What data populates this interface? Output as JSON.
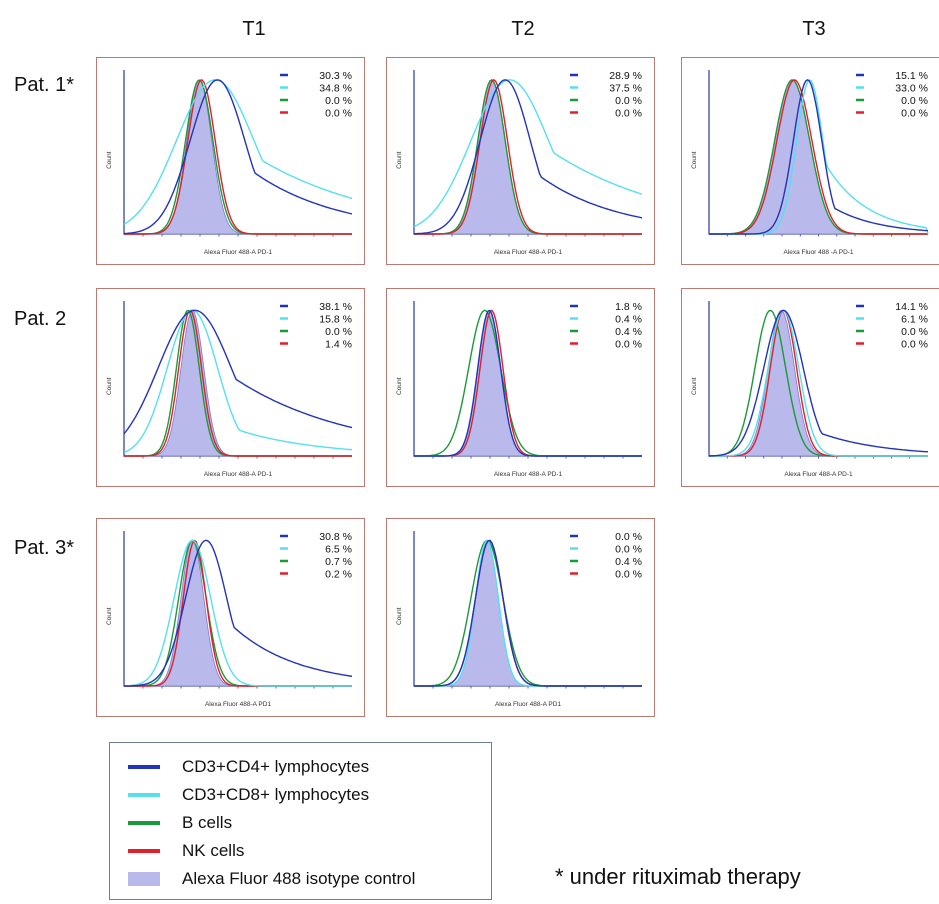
{
  "columns": [
    "T1",
    "T2",
    "T3"
  ],
  "rows": [
    "Pat. 1*",
    "Pat. 2",
    "Pat. 3*"
  ],
  "footnote": "* under rituximab therapy",
  "colors": {
    "cd4": "#2233bb",
    "cd8": "#55e0ee",
    "bcell": "#1a9a3a",
    "nk": "#e0202a",
    "iso_fill": "#b9b9ec",
    "iso_line": "#7a7ad0",
    "axis": "#2a3aa0",
    "border": "#b97a72"
  },
  "legend": [
    {
      "key": "cd4",
      "label": "CD3+CD4+ lymphocytes",
      "kind": "line"
    },
    {
      "key": "cd8",
      "label": "CD3+CD8+ lymphocytes",
      "kind": "line"
    },
    {
      "key": "bcell",
      "label": "B cells",
      "kind": "line"
    },
    {
      "key": "nk",
      "label": "NK cells",
      "kind": "line"
    },
    {
      "key": "iso",
      "label": "Alexa Fluor 488 isotype control",
      "kind": "fill"
    }
  ],
  "chart_data": [
    {
      "type": "area",
      "row": "Pat. 1*",
      "column": "T1",
      "xlabel": "Alexa Fluor 488-A PD-1",
      "ylabel": "Count",
      "percentages": {
        "cd4": "30.3 %",
        "cd8": "34.8 %",
        "bcell": "0.0 %",
        "nk": "0.0 %"
      },
      "peaks": {
        "iso": [
          0.33,
          0.055
        ],
        "cd4": [
          0.41,
          0.12
        ],
        "cd8": [
          0.4,
          0.17
        ],
        "bcell": [
          0.33,
          0.06
        ],
        "nk": [
          0.34,
          0.06
        ]
      }
    },
    {
      "type": "area",
      "row": "Pat. 1*",
      "column": "T2",
      "xlabel": "Alexa Fluor 488-A PD-1",
      "ylabel": "Count",
      "percentages": {
        "cd4": "28.9 %",
        "cd8": "37.5 %",
        "bcell": "0.0 %",
        "nk": "0.0 %"
      },
      "peaks": {
        "iso": [
          0.34,
          0.06
        ],
        "cd4": [
          0.4,
          0.11
        ],
        "cd8": [
          0.42,
          0.17
        ],
        "bcell": [
          0.34,
          0.06
        ],
        "nk": [
          0.35,
          0.06
        ]
      }
    },
    {
      "type": "area",
      "row": "Pat. 1*",
      "column": "T3",
      "xlabel": "Alexa Fluor 488 -A PD-1",
      "ylabel": "Count",
      "percentages": {
        "cd4": "15.1 %",
        "cd8": "33.0 %",
        "bcell": "0.0 %",
        "nk": "0.0 %"
      },
      "peaks": {
        "iso": [
          0.38,
          0.08
        ],
        "cd4": [
          0.45,
          0.065
        ],
        "cd8": [
          0.46,
          0.06
        ],
        "bcell": [
          0.38,
          0.08
        ],
        "nk": [
          0.39,
          0.08
        ]
      }
    },
    {
      "type": "area",
      "row": "Pat. 2",
      "column": "T1",
      "xlabel": "Alexa Fluor 488-A PD-1",
      "ylabel": "Count",
      "percentages": {
        "cd4": "38.1 %",
        "cd8": "15.8 %",
        "bcell": "0.0 %",
        "nk": "1.4 %"
      },
      "peaks": {
        "iso": [
          0.3,
          0.05
        ],
        "cd4": [
          0.31,
          0.16
        ],
        "cd8": [
          0.3,
          0.11
        ],
        "bcell": [
          0.28,
          0.05
        ],
        "nk": [
          0.29,
          0.05
        ]
      }
    },
    {
      "type": "area",
      "row": "Pat. 2",
      "column": "T2",
      "xlabel": "Alexa Fluor 488-A PD-1",
      "ylabel": "Count",
      "percentages": {
        "cd4": "1.8 %",
        "cd8": "0.4 %",
        "bcell": "0.4 %",
        "nk": "0.0 %"
      },
      "peaks": {
        "iso": [
          0.33,
          0.05
        ],
        "cd4": [
          0.33,
          0.05
        ],
        "cd8": [
          0.33,
          0.05
        ],
        "bcell": [
          0.31,
          0.07
        ],
        "nk": [
          0.34,
          0.05
        ]
      }
    },
    {
      "type": "area",
      "row": "Pat. 2",
      "column": "T3",
      "xlabel": "Alexa Fluor 488-A PD-1",
      "ylabel": "Count",
      "percentages": {
        "cd4": "14.1 %",
        "cd8": "6.1 %",
        "bcell": "0.0 %",
        "nk": "0.0 %"
      },
      "peaks": {
        "iso": [
          0.33,
          0.06
        ],
        "cd4": [
          0.34,
          0.09
        ],
        "cd8": [
          0.34,
          0.07
        ],
        "bcell": [
          0.28,
          0.07
        ],
        "nk": [
          0.34,
          0.06
        ]
      }
    },
    {
      "type": "area",
      "row": "Pat. 3*",
      "column": "T1",
      "xlabel": "Alexa Fluor 488-A PD1",
      "ylabel": "Count",
      "percentages": {
        "cd4": "30.8 %",
        "cd8": "6.5 %",
        "bcell": "0.7 %",
        "nk": "0.2 %"
      },
      "peaks": {
        "iso": [
          0.3,
          0.05
        ],
        "cd4": [
          0.36,
          0.09
        ],
        "cd8": [
          0.3,
          0.08
        ],
        "bcell": [
          0.3,
          0.06
        ],
        "nk": [
          0.31,
          0.05
        ]
      }
    },
    {
      "type": "area",
      "row": "Pat. 3*",
      "column": "T2",
      "xlabel": "Alexa Fluor 488-A PD1",
      "ylabel": "Count",
      "percentages": {
        "cd4": "0.0 %",
        "cd8": "0.0 %",
        "bcell": "0.4 %",
        "nk": "0.0 %"
      },
      "peaks": {
        "iso": [
          0.32,
          0.05
        ],
        "cd4": [
          0.33,
          0.06
        ],
        "cd8": [
          0.32,
          0.05
        ],
        "bcell": [
          0.32,
          0.07
        ],
        "nk": [
          0.33,
          0.06
        ]
      }
    }
  ]
}
